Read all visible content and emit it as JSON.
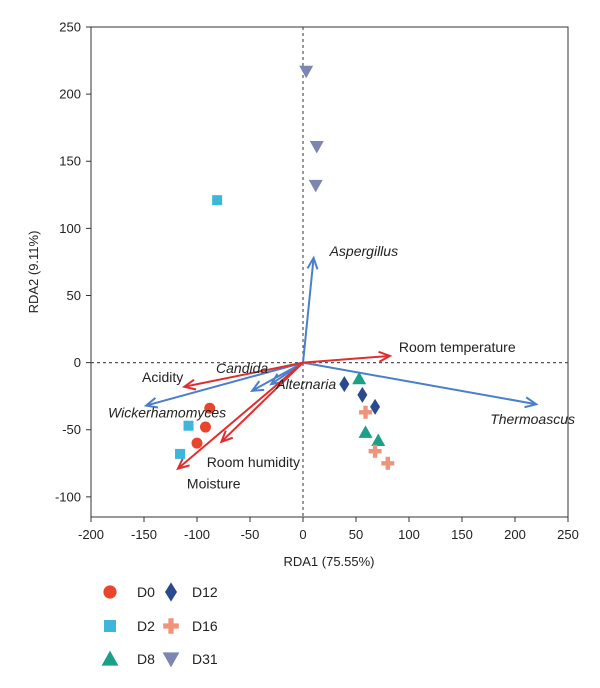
{
  "chart_data": {
    "type": "scatter",
    "xlabel": "RDA1 (75.55%)",
    "ylabel": "RDA2 (9.11%)",
    "xlim": [
      -200,
      250
    ],
    "ylim": [
      -115,
      250
    ],
    "xticks": [
      -200,
      -150,
      -100,
      -50,
      0,
      50,
      100,
      150,
      200,
      250
    ],
    "yticks": [
      -100,
      -50,
      0,
      50,
      100,
      150,
      200,
      250
    ],
    "zero_lines": "dotted",
    "legend_placement": "bottom-left",
    "series": [
      {
        "name": "D0",
        "marker": "circle",
        "color": "#E8452C",
        "points": [
          [
            -88,
            -34
          ],
          [
            -92,
            -48
          ],
          [
            -100,
            -60
          ]
        ]
      },
      {
        "name": "D2",
        "marker": "square",
        "color": "#3DB6D9",
        "points": [
          [
            -81,
            121
          ],
          [
            -108,
            -47
          ],
          [
            -116,
            -68
          ]
        ]
      },
      {
        "name": "D8",
        "marker": "triangle-up",
        "color": "#19A086",
        "points": [
          [
            53,
            -12
          ],
          [
            59,
            -52
          ],
          [
            71,
            -58
          ]
        ]
      },
      {
        "name": "D12",
        "marker": "diamond",
        "color": "#2B4A8E",
        "points": [
          [
            39,
            -16
          ],
          [
            56,
            -24
          ],
          [
            68,
            -33
          ]
        ]
      },
      {
        "name": "D16",
        "marker": "plus",
        "color": "#F0937B",
        "points": [
          [
            59,
            -37
          ],
          [
            68,
            -66
          ],
          [
            80,
            -75
          ]
        ]
      },
      {
        "name": "D31",
        "marker": "triangle-down",
        "color": "#7D86B3",
        "points": [
          [
            3,
            217
          ],
          [
            13,
            161
          ],
          [
            12,
            132
          ]
        ]
      }
    ],
    "vectors": [
      {
        "label": "Aspergillus",
        "x": 10,
        "y": 78,
        "color": "#4A7FC9",
        "italic": true
      },
      {
        "label": "Thermoascus",
        "x": 220,
        "y": -31,
        "color": "#4A7FC9",
        "italic": true
      },
      {
        "label": "Candida",
        "x": -48,
        "y": -21,
        "color": "#4A7FC9",
        "italic": true
      },
      {
        "label": "Alternaria",
        "x": -30,
        "y": -16,
        "color": "#4A7FC9",
        "italic": true
      },
      {
        "label": "Wickerhamomyces",
        "x": -148,
        "y": -32,
        "color": "#4A7FC9",
        "italic": true
      },
      {
        "label": "Room temperature",
        "x": 82,
        "y": 5,
        "color": "#E02E2E",
        "italic": false
      },
      {
        "label": "Acidity",
        "x": -112,
        "y": -18,
        "color": "#E02E2E",
        "italic": false
      },
      {
        "label": "Room humidity",
        "x": -77,
        "y": -59,
        "color": "#E02E2E",
        "italic": false
      },
      {
        "label": "Moisture",
        "x": -118,
        "y": -79,
        "color": "#E02E2E",
        "italic": false
      }
    ]
  }
}
